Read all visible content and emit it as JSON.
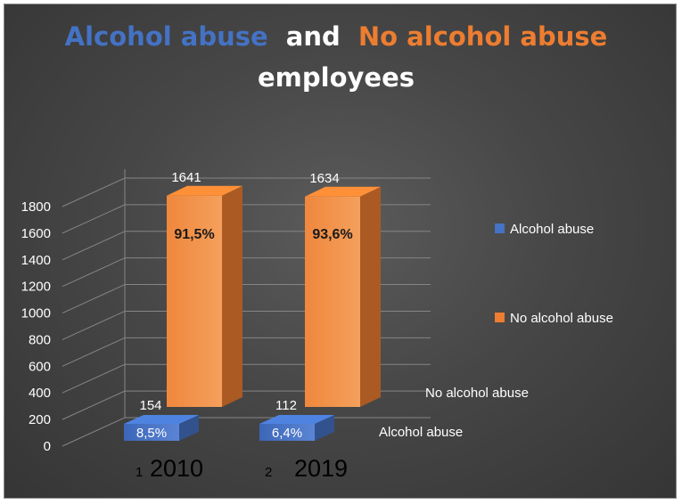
{
  "chart_data": {
    "type": "bar",
    "title_parts": [
      {
        "text": "Alcohol abuse",
        "color": "#4472c4"
      },
      {
        "text": "and",
        "color": "#ffffff"
      },
      {
        "text": "No alcohol abuse",
        "color": "#ed7d31"
      }
    ],
    "title_line2": "employees",
    "categories": [
      "2010",
      "2019"
    ],
    "category_index": [
      "1",
      "2"
    ],
    "series": [
      {
        "name": "Alcohol abuse",
        "values": [
          154,
          112
        ],
        "percent": [
          "8,5%",
          "6,4%"
        ],
        "color": "#4472c4"
      },
      {
        "name": "No alcohol abuse",
        "values": [
          1641,
          1634
        ],
        "percent": [
          "91,5%",
          "93,6%"
        ],
        "color": "#ed7d31"
      }
    ],
    "yticks": [
      "0",
      "200",
      "400",
      "600",
      "800",
      "1000",
      "1200",
      "1400",
      "1600",
      "1800"
    ],
    "ylim": [
      0,
      1800
    ],
    "depth_axis_labels": [
      "No alcohol abuse",
      "Alcohol abuse"
    ],
    "legend": [
      "Alcohol abuse",
      "No alcohol abuse"
    ],
    "legend_position": "right",
    "grid": true
  }
}
